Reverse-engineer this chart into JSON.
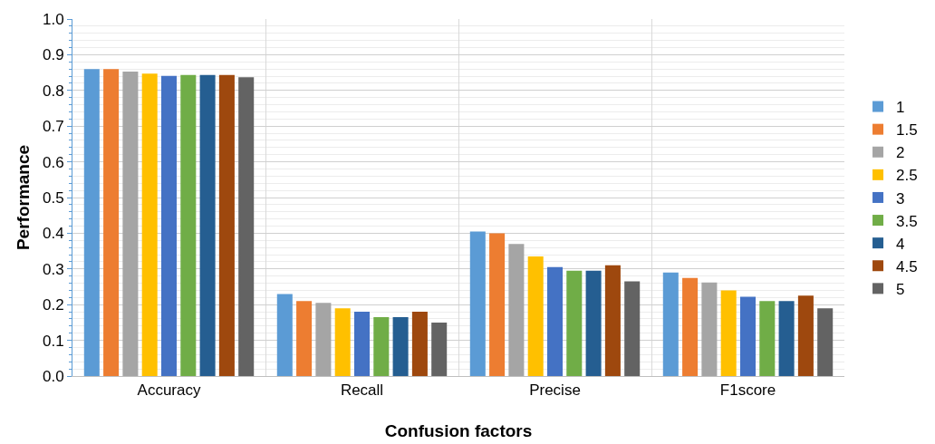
{
  "chart_data": {
    "type": "bar",
    "xlabel": "Confusion factors",
    "ylabel": "Performance",
    "categories": [
      "Accuracy",
      "Recall",
      "Precise",
      "F1score"
    ],
    "series": [
      {
        "name": "1",
        "color": "#5b9bd5",
        "values": [
          0.86,
          0.23,
          0.405,
          0.29
        ]
      },
      {
        "name": "1.5",
        "color": "#ed7d31",
        "values": [
          0.86,
          0.21,
          0.4,
          0.275
        ]
      },
      {
        "name": "2",
        "color": "#a5a5a5",
        "values": [
          0.853,
          0.205,
          0.37,
          0.262
        ]
      },
      {
        "name": "2.5",
        "color": "#ffc000",
        "values": [
          0.847,
          0.19,
          0.335,
          0.24
        ]
      },
      {
        "name": "3",
        "color": "#4472c4",
        "values": [
          0.841,
          0.18,
          0.305,
          0.222
        ]
      },
      {
        "name": "3.5",
        "color": "#70ad47",
        "values": [
          0.843,
          0.165,
          0.295,
          0.21
        ]
      },
      {
        "name": "4",
        "color": "#255e91",
        "values": [
          0.843,
          0.165,
          0.295,
          0.21
        ]
      },
      {
        "name": "4.5",
        "color": "#9e480e",
        "values": [
          0.843,
          0.18,
          0.31,
          0.225
        ]
      },
      {
        "name": "5",
        "color": "#636363",
        "values": [
          0.837,
          0.15,
          0.265,
          0.19
        ]
      }
    ],
    "ylim": [
      0,
      1
    ],
    "yticks": [
      {
        "value": 0,
        "label": "0.0"
      },
      0.1,
      0.2,
      0.3,
      0.4,
      0.5,
      0.6,
      0.7,
      0.8,
      0.9,
      {
        "value": 1,
        "label": "1.0"
      }
    ],
    "grid": true,
    "legend": "right"
  }
}
